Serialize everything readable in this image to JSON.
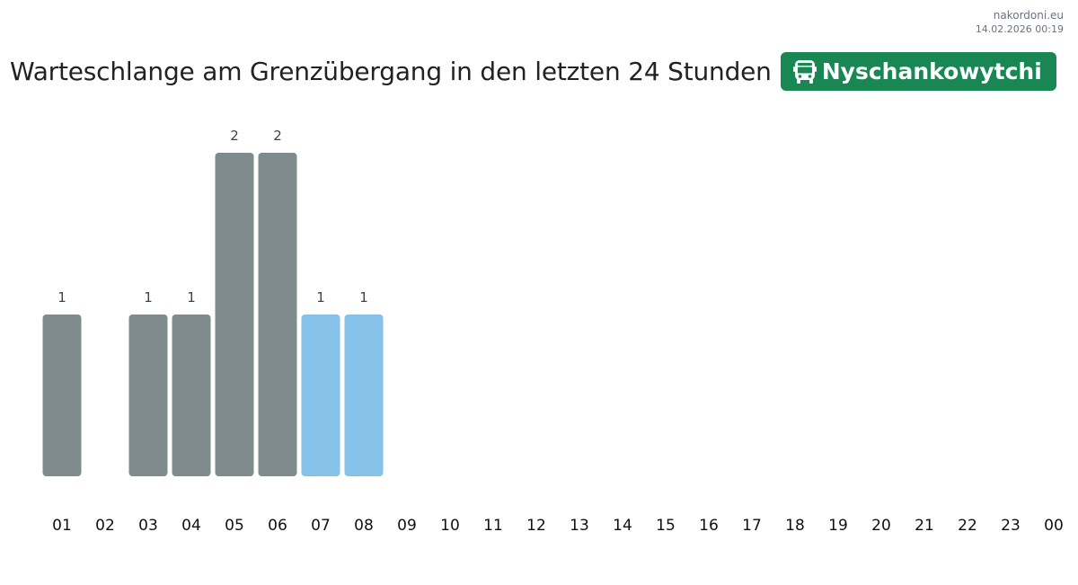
{
  "source": {
    "site": "nakordoni.eu",
    "timestamp": "14.02.2026 00:19"
  },
  "header": {
    "title": "Warteschlange am Grenzübergang in den letzten 24 Stunden",
    "badge_label": "Nyschankowytchi",
    "badge_icon": "bus-icon",
    "badge_color": "#198754"
  },
  "colors": {
    "past": "#7f8c8d",
    "recent": "#85c1e9"
  },
  "chart_data": {
    "type": "bar",
    "title": "Warteschlange am Grenzübergang in den letzten 24 Stunden",
    "xlabel": "",
    "ylabel": "",
    "grid": false,
    "legend": "none",
    "ylim": [
      0,
      2
    ],
    "categories": [
      "01",
      "02",
      "03",
      "04",
      "05",
      "06",
      "07",
      "08",
      "09",
      "10",
      "11",
      "12",
      "13",
      "14",
      "15",
      "16",
      "17",
      "18",
      "19",
      "20",
      "21",
      "22",
      "23",
      "00"
    ],
    "values": [
      1,
      0,
      1,
      1,
      2,
      2,
      1,
      1,
      0,
      0,
      0,
      0,
      0,
      0,
      0,
      0,
      0,
      0,
      0,
      0,
      0,
      0,
      0,
      0
    ],
    "bar_color_group": [
      "past",
      "past",
      "past",
      "past",
      "past",
      "past",
      "recent",
      "recent",
      "past",
      "past",
      "past",
      "past",
      "past",
      "past",
      "past",
      "past",
      "past",
      "past",
      "past",
      "past",
      "past",
      "past",
      "past",
      "past"
    ],
    "data_labels": [
      "1",
      "",
      "1",
      "1",
      "2",
      "2",
      "1",
      "1",
      "",
      "",
      "",
      "",
      "",
      "",
      "",
      "",
      "",
      "",
      "",
      "",
      "",
      "",
      "",
      ""
    ]
  }
}
